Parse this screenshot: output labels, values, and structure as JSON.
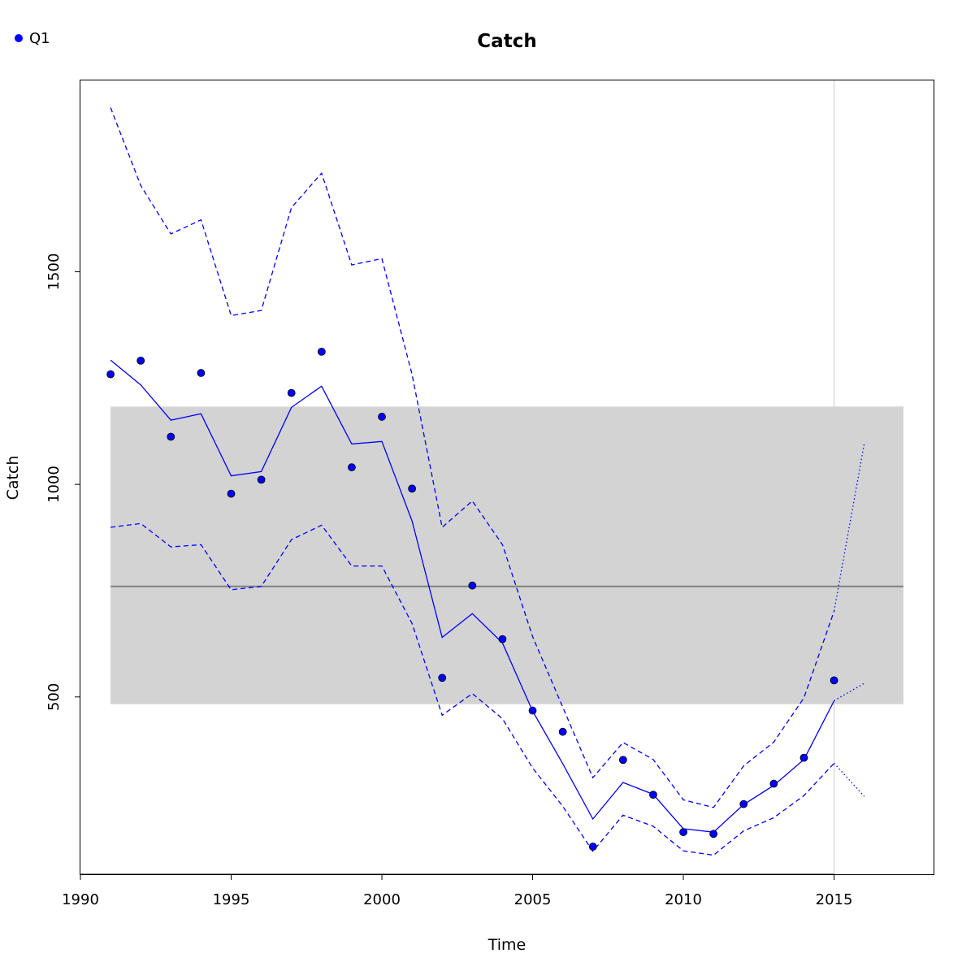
{
  "chart_data": {
    "type": "line",
    "title": "Catch",
    "xlabel": "Time",
    "ylabel": "Catch",
    "xlim": [
      1990,
      2018.3
    ],
    "ylim": [
      83,
      1950
    ],
    "x_ticks": [
      1990,
      1995,
      2000,
      2005,
      2010,
      2015
    ],
    "y_ticks": [
      500,
      1000,
      1500
    ],
    "grid": false,
    "legend_position": "top-left",
    "legend": [
      {
        "name": "Q1",
        "marker": "filled-circle",
        "color": "#0000ff"
      }
    ],
    "colors": {
      "series": "#0000ff",
      "reference_line": "#7f7f7f",
      "band": "#d3d3d3",
      "marker_edge": "#000000",
      "vline": "#d3d3d3"
    },
    "reference_band": {
      "x": [
        1991,
        2017.3
      ],
      "y": [
        483,
        1183
      ]
    },
    "reference_line": {
      "y": 760
    },
    "vertical_line": {
      "x": 2015
    },
    "series": [
      {
        "name": "Q1",
        "kind": "points",
        "x": [
          1991,
          1992,
          1993,
          1994,
          1995,
          1996,
          1997,
          1998,
          1999,
          2000,
          2001,
          2002,
          2003,
          2004,
          2005,
          2006,
          2007,
          2008,
          2009,
          2010,
          2011,
          2012,
          2013,
          2014,
          2015
        ],
        "y": [
          1259,
          1291,
          1112,
          1262,
          978,
          1011,
          1215,
          1312,
          1040,
          1159,
          990,
          545,
          762,
          636,
          468,
          418,
          148,
          352,
          270,
          182,
          178,
          248,
          296,
          357,
          539
        ]
      },
      {
        "kind": "fitted",
        "line": "solid",
        "x": [
          1991,
          1992,
          1993,
          1994,
          1995,
          1996,
          1997,
          1998,
          1999,
          2000,
          2001,
          2002,
          2003,
          2004,
          2005,
          2006,
          2007,
          2008,
          2009,
          2010,
          2011,
          2012,
          2013,
          2014,
          2015
        ],
        "y": [
          1292,
          1234,
          1151,
          1166,
          1020,
          1030,
          1181,
          1231,
          1095,
          1101,
          914,
          640,
          696,
          627,
          467,
          343,
          213,
          299,
          271,
          190,
          182,
          247,
          292,
          353,
          491
        ]
      },
      {
        "kind": "upper-ci",
        "line": "dashed",
        "x": [
          1991,
          1992,
          1993,
          1994,
          1995,
          1996,
          1997,
          1998,
          1999,
          2000,
          2001,
          2002,
          2003,
          2004,
          2005,
          2006,
          2007,
          2008,
          2009,
          2010,
          2011,
          2012,
          2013,
          2014,
          2015
        ],
        "y": [
          1886,
          1703,
          1589,
          1622,
          1397,
          1409,
          1651,
          1732,
          1516,
          1531,
          1259,
          899,
          961,
          858,
          642,
          476,
          310,
          393,
          353,
          258,
          240,
          338,
          394,
          498,
          702
        ]
      },
      {
        "kind": "lower-ci",
        "line": "dashed",
        "x": [
          1991,
          1992,
          1993,
          1994,
          1995,
          1996,
          1997,
          1998,
          1999,
          2000,
          2001,
          2002,
          2003,
          2004,
          2005,
          2006,
          2007,
          2008,
          2009,
          2010,
          2011,
          2012,
          2013,
          2014,
          2015
        ],
        "y": [
          899,
          908,
          853,
          858,
          752,
          760,
          870,
          904,
          808,
          808,
          673,
          457,
          508,
          449,
          333,
          243,
          137,
          222,
          196,
          138,
          128,
          185,
          216,
          268,
          344
        ]
      },
      {
        "kind": "forecast",
        "line": "dotted",
        "x": [
          2015,
          2016
        ],
        "y": [
          491,
          532
        ]
      },
      {
        "kind": "forecast-upper",
        "line": "dotted",
        "x": [
          2015,
          2016
        ],
        "y": [
          702,
          1096
        ]
      },
      {
        "kind": "forecast-lower",
        "line": "dotted",
        "x": [
          2015,
          2016
        ],
        "y": [
          344,
          266
        ]
      }
    ]
  }
}
